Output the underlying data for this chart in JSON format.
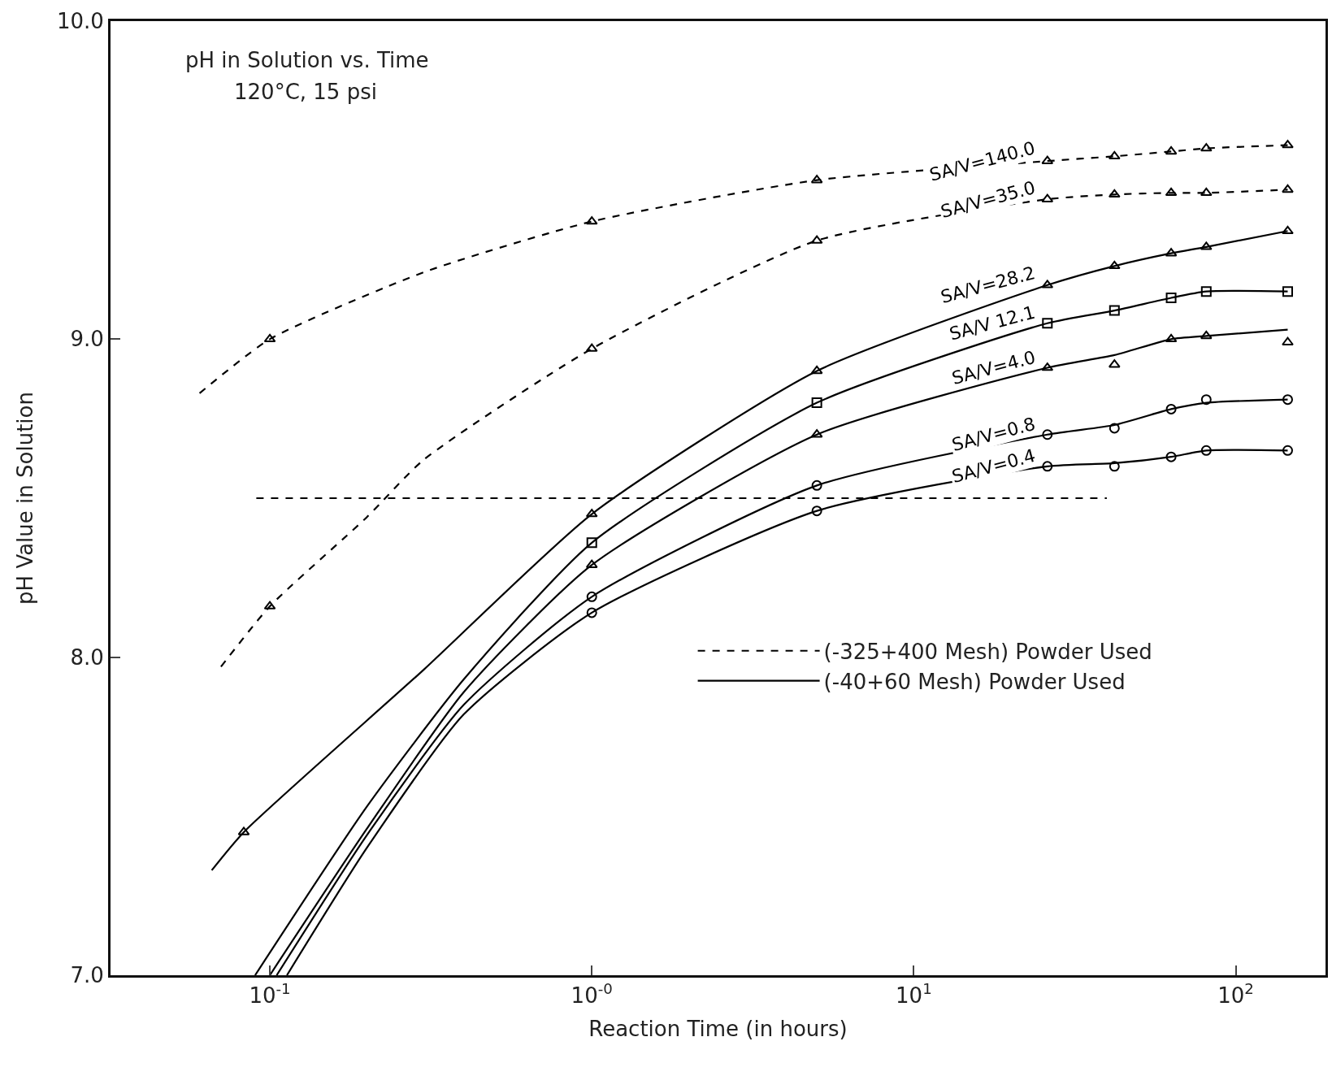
{
  "chart_data": {
    "type": "line",
    "title": "pH in Solution vs. Time",
    "subtitle": "120°C, 15 psi",
    "xlabel": "Reaction Time (in hours)",
    "ylabel": "pH Value in Solution",
    "log": "x",
    "xlim": [
      0.032,
      190
    ],
    "xticks": [
      {
        "value": 0.1,
        "label": "10$^{-1}$"
      },
      {
        "value": 1,
        "label": "10$^{-0}$"
      },
      {
        "value": 10,
        "label": "10$^{1}$"
      },
      {
        "value": 100,
        "label": "10$^{2}$"
      }
    ],
    "ylim": [
      7,
      10
    ],
    "yticks": [
      {
        "value": 7,
        "label": "7.0"
      },
      {
        "value": 8,
        "label": "8.0"
      },
      {
        "value": 9,
        "label": "9.0"
      },
      {
        "value": 10,
        "label": "10.0"
      }
    ],
    "grid": false,
    "legend": "right",
    "ref_lines": [
      {
        "axis": "y",
        "value": 8.5,
        "color": "#000000",
        "line_style": "dashed"
      }
    ],
    "series": [
      {
        "type": "line",
        "color": "#000000",
        "line_style": "dashed",
        "marker": "none",
        "x": [
          0.0605,
          0.1,
          0.3,
          1,
          5,
          26,
          42,
          63,
          81,
          145
        ],
        "values": [
          8.83,
          9.0,
          9.21,
          9.37,
          9.5,
          9.56,
          9.575,
          9.59,
          9.6,
          9.61
        ]
      },
      {
        "type": "scatter",
        "name": "SA/V=140.0",
        "color": "#000000",
        "marker": "triangle",
        "x": [
          0.1,
          1,
          5,
          26,
          42,
          63,
          81,
          145
        ],
        "values": [
          9.0,
          9.37,
          9.5,
          9.56,
          9.575,
          9.59,
          9.6,
          9.61
        ]
      },
      {
        "type": "line",
        "color": "#000000",
        "line_style": "dashed",
        "marker": "none",
        "x": [
          0.0705,
          0.1,
          0.2,
          0.3,
          1,
          5,
          26,
          42,
          63,
          81,
          145
        ],
        "values": [
          7.97,
          8.16,
          8.44,
          8.62,
          8.97,
          9.31,
          9.44,
          9.455,
          9.46,
          9.46,
          9.47
        ]
      },
      {
        "type": "scatter",
        "name": "SA/V=35.0",
        "color": "#000000",
        "marker": "triangle",
        "x": [
          0.1,
          1,
          5,
          26,
          42,
          63,
          81,
          145
        ],
        "values": [
          8.16,
          8.97,
          9.31,
          9.44,
          9.455,
          9.46,
          9.46,
          9.47
        ]
      },
      {
        "type": "line",
        "color": "#000000",
        "line_style": "solid",
        "marker": "none",
        "x": [
          0.066,
          0.083,
          0.3,
          1,
          5,
          26,
          42,
          63,
          81,
          145
        ],
        "values": [
          7.33,
          7.45,
          7.96,
          8.45,
          8.9,
          9.17,
          9.23,
          9.27,
          9.29,
          9.34
        ]
      },
      {
        "type": "scatter",
        "name": "SA/V=28.2",
        "color": "#000000",
        "marker": "triangle",
        "x": [
          0.083,
          1,
          5,
          26,
          42,
          63,
          81,
          145
        ],
        "values": [
          7.45,
          8.45,
          8.9,
          9.17,
          9.23,
          9.27,
          9.29,
          9.34
        ]
      },
      {
        "type": "line",
        "color": "#000000",
        "line_style": "solid",
        "marker": "none",
        "x": [
          0.09,
          0.2,
          0.4,
          1,
          5,
          26,
          42,
          63,
          81,
          145
        ],
        "values": [
          7.0,
          7.53,
          7.93,
          8.36,
          8.8,
          9.05,
          9.09,
          9.13,
          9.15,
          9.15
        ]
      },
      {
        "type": "scatter",
        "name": "SA/V 12.1",
        "color": "#000000",
        "marker": "square",
        "x": [
          1,
          5,
          26,
          42,
          63,
          81,
          145
        ],
        "values": [
          8.36,
          8.8,
          9.05,
          9.09,
          9.13,
          9.15,
          9.15
        ]
      },
      {
        "type": "line",
        "color": "#000000",
        "line_style": "solid",
        "marker": "none",
        "x": [
          0.1,
          0.2,
          0.4,
          1,
          5,
          26,
          42,
          63,
          81,
          145
        ],
        "values": [
          7.0,
          7.46,
          7.89,
          8.29,
          8.7,
          8.91,
          8.95,
          9.0,
          9.01,
          9.03
        ]
      },
      {
        "type": "scatter",
        "name": "SA/V=4.0",
        "color": "#000000",
        "marker": "triangle",
        "x": [
          1,
          5,
          26,
          42,
          63,
          81,
          145
        ],
        "values": [
          8.29,
          8.7,
          8.91,
          8.92,
          9.0,
          9.01,
          8.99
        ]
      },
      {
        "type": "line",
        "color": "#000000",
        "line_style": "solid",
        "marker": "none",
        "x": [
          0.105,
          0.2,
          0.4,
          1,
          5,
          26,
          42,
          63,
          81,
          145
        ],
        "values": [
          7.0,
          7.44,
          7.85,
          8.19,
          8.54,
          8.7,
          8.73,
          8.78,
          8.8,
          8.81
        ]
      },
      {
        "type": "scatter",
        "name": "SA/V=0.8",
        "color": "#000000",
        "marker": "circle",
        "x": [
          1,
          5,
          26,
          42,
          63,
          81,
          145
        ],
        "values": [
          8.19,
          8.54,
          8.7,
          8.72,
          8.78,
          8.81,
          8.81
        ]
      },
      {
        "type": "line",
        "color": "#000000",
        "line_style": "solid",
        "marker": "none",
        "x": [
          0.113,
          0.2,
          0.4,
          1,
          5,
          26,
          42,
          63,
          81,
          145
        ],
        "values": [
          7.0,
          7.4,
          7.82,
          8.14,
          8.46,
          8.6,
          8.61,
          8.63,
          8.65,
          8.65
        ]
      },
      {
        "type": "scatter",
        "name": "SA/V=0.4",
        "color": "#000000",
        "marker": "circle",
        "x": [
          1,
          5,
          26,
          42,
          63,
          81,
          145
        ],
        "values": [
          8.14,
          8.46,
          8.6,
          8.6,
          8.63,
          8.65,
          8.65
        ]
      },
      {
        "name": "(-325+400 Mesh) Powder Used",
        "color": "#000000",
        "line_style": "dashed",
        "marker": "none"
      },
      {
        "name": "(-40+60 Mesh) Powder Used",
        "color": "#000000",
        "line_style": "solid",
        "marker": "none"
      }
    ]
  }
}
